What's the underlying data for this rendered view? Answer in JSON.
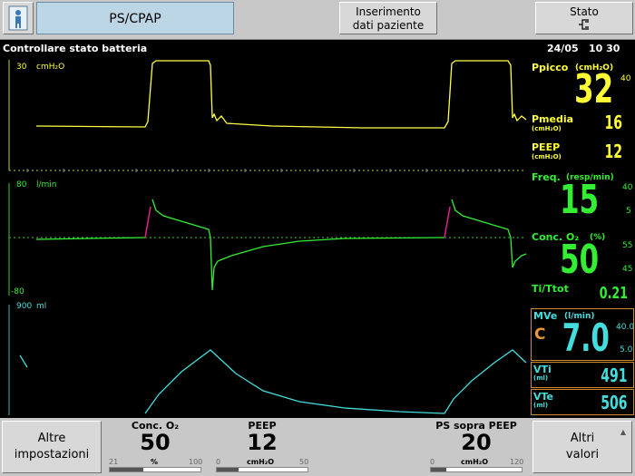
{
  "header": {
    "mode_label": "PS/CPAP",
    "patient_label_1": "Inserimento",
    "patient_label_2": "dati paziente",
    "status_label": "Stato",
    "status_icon": "plug-icon"
  },
  "status_line": {
    "message": "Controllare stato batteria",
    "date": "24/05",
    "time": "10 30"
  },
  "waveforms": {
    "pressure": {
      "scale_top": "30",
      "unit": "cmH₂O"
    },
    "flow": {
      "scale_top": "80",
      "scale_bottom": "-80",
      "unit": "l/min"
    },
    "volume": {
      "scale_top": "900",
      "unit": "ml"
    }
  },
  "measurements": {
    "ppeak": {
      "label": "Ppicco",
      "unit": "(cmH₂O)",
      "value": "32",
      "limit": "40"
    },
    "pmean": {
      "label": "Pmedia",
      "unit": "(cmH₂O)",
      "value": "16"
    },
    "peep": {
      "label": "PEEP",
      "unit": "(cmH₂O)",
      "value": "12"
    },
    "freq": {
      "label": "Freq.",
      "unit": "(resp/min)",
      "value": "15",
      "limit_high": "40",
      "limit_low": "5"
    },
    "o2": {
      "label": "Conc. O₂",
      "unit": "(%)",
      "value": "50",
      "limit_high": "55",
      "limit_low": "45"
    },
    "titot": {
      "label": "Ti/Ttot",
      "value": "0.21"
    },
    "mve": {
      "label": "MVe",
      "unit": "(l/min)",
      "value": "7.0",
      "flag": "C",
      "limit_high": "40.0",
      "limit_low": "5.0"
    },
    "vti": {
      "label": "VTi",
      "unit": "(ml)",
      "value": "491"
    },
    "vte": {
      "label": "VTe",
      "unit": "(ml)",
      "value": "506"
    }
  },
  "bottom": {
    "other_settings_1": "Altre",
    "other_settings_2": "impostazioni",
    "other_values_1": "Altri",
    "other_values_2": "valori",
    "settings": [
      {
        "label": "Conc. O₂",
        "value": "50",
        "unit": "%",
        "min": "21",
        "max": "100",
        "fraction": 0.37
      },
      {
        "label": "PEEP",
        "value": "12",
        "unit": "cmH₂O",
        "min": "0",
        "max": "50",
        "fraction": 0.24
      },
      {
        "label": "PS sopra PEEP",
        "value": "20",
        "unit": "cmH₂O",
        "min": "0",
        "max": "120",
        "fraction": 0.17
      }
    ]
  }
}
